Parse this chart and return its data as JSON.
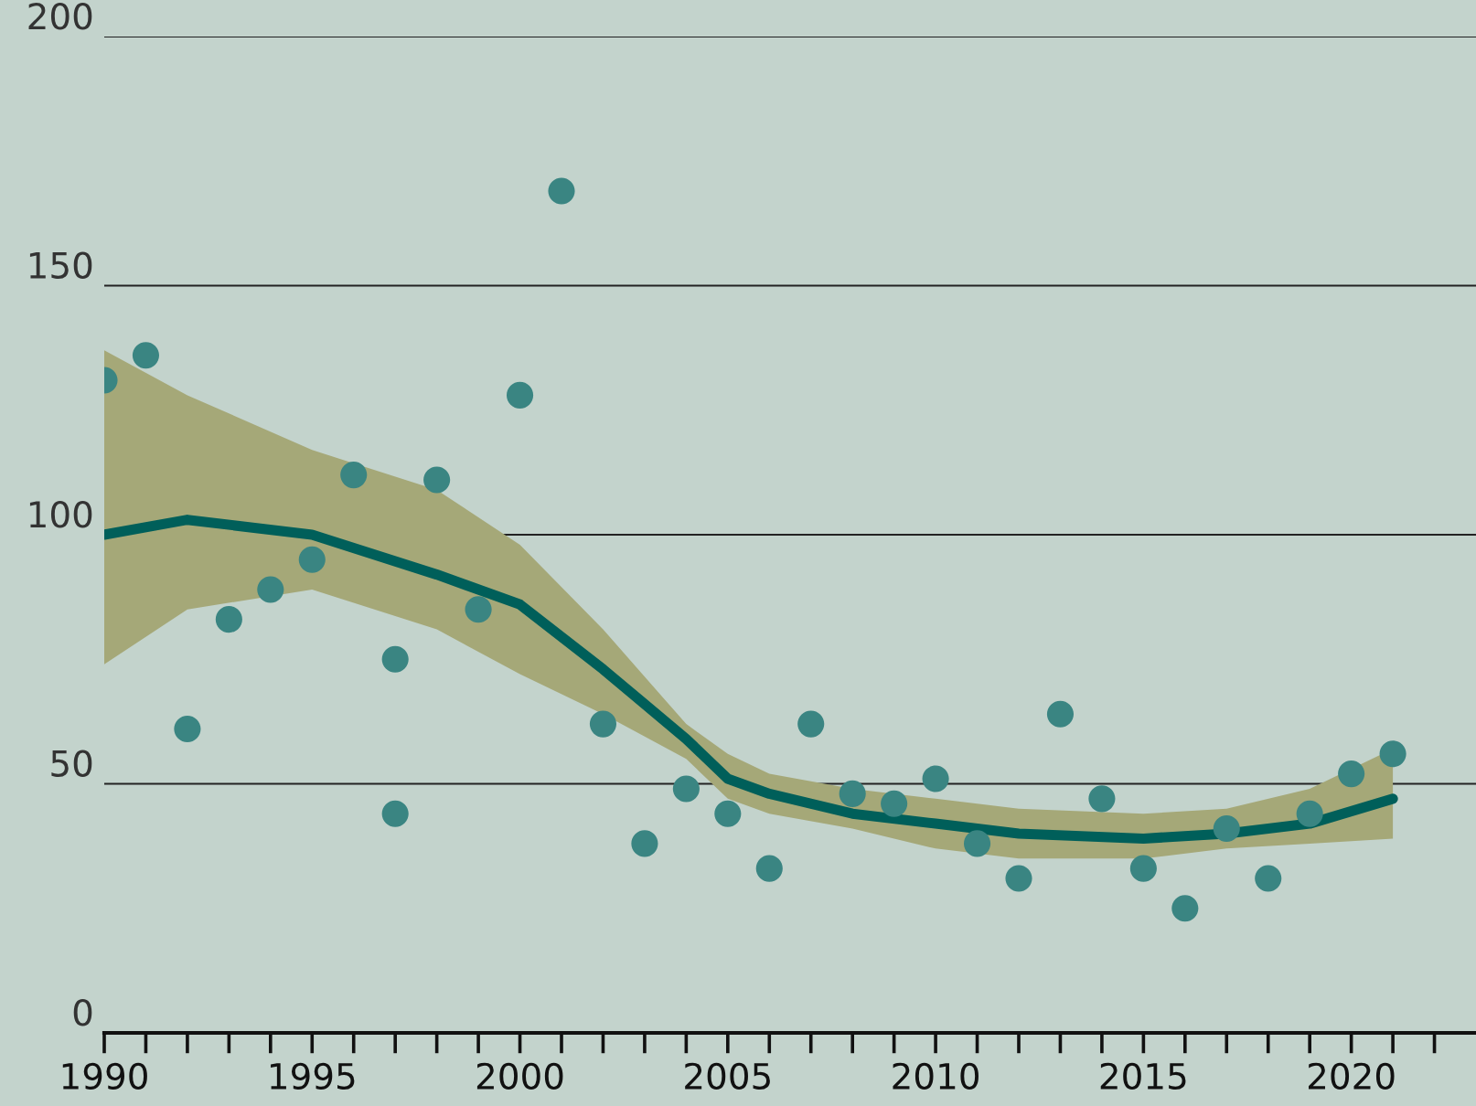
{
  "chart_data": {
    "type": "scatter",
    "series": [
      {
        "color": "#3a8582",
        "marker": "circle",
        "x": [
          1990,
          1991,
          1992,
          1993,
          1994,
          1995,
          1996,
          1997,
          1997,
          1998,
          1999,
          2000,
          2001,
          2002,
          2003,
          2004,
          2005,
          2006,
          2007,
          2008,
          2009,
          2010,
          2011,
          2012,
          2013,
          2014,
          2015,
          2016,
          2017,
          2018,
          2019,
          2020,
          2021
        ],
        "values": [
          131,
          136,
          61,
          83,
          89,
          95,
          112,
          75,
          44,
          111,
          85,
          128,
          169,
          62,
          38,
          49,
          44,
          33,
          62,
          48,
          46,
          51,
          38,
          31,
          64,
          47,
          33,
          25,
          41,
          31,
          44,
          52,
          56
        ]
      },
      {
        "type": "line",
        "marker": "none",
        "color": "#005f5a",
        "x": [
          1990,
          1992,
          1995,
          1998,
          2000,
          2002,
          2004,
          2005,
          2006,
          2008,
          2010,
          2012,
          2015,
          2017,
          2019,
          2021
        ],
        "values": [
          100,
          103,
          100,
          92,
          86,
          73,
          59,
          51,
          48,
          44,
          42,
          40,
          39,
          40,
          42,
          47
        ],
        "lower": [
          74,
          85,
          89,
          81,
          72,
          64,
          55,
          47,
          44,
          41,
          37,
          35,
          35,
          37,
          38,
          39
        ],
        "upper": [
          137,
          128,
          117,
          109,
          98,
          81,
          62,
          56,
          52,
          49,
          47,
          45,
          44,
          45,
          49,
          57
        ]
      }
    ],
    "xlim": [
      1990,
      2023
    ],
    "xticks": [
      1990,
      {
        "value": 1991,
        "label": null
      },
      {
        "value": 1992,
        "label": null
      },
      {
        "value": 1993,
        "label": null
      },
      {
        "value": 1994,
        "label": null
      },
      1995,
      {
        "value": 1996,
        "label": null
      },
      {
        "value": 1997,
        "label": null
      },
      {
        "value": 1998,
        "label": null
      },
      {
        "value": 1999,
        "label": null
      },
      2000,
      {
        "value": 2001,
        "label": null
      },
      {
        "value": 2002,
        "label": null
      },
      {
        "value": 2003,
        "label": null
      },
      {
        "value": 2004,
        "label": null
      },
      2005,
      {
        "value": 2006,
        "label": null
      },
      {
        "value": 2007,
        "label": null
      },
      {
        "value": 2008,
        "label": null
      },
      {
        "value": 2009,
        "label": null
      },
      2010,
      {
        "value": 2011,
        "label": null
      },
      {
        "value": 2012,
        "label": null
      },
      {
        "value": 2013,
        "label": null
      },
      {
        "value": 2014,
        "label": null
      },
      2015,
      {
        "value": 2016,
        "label": null
      },
      {
        "value": 2017,
        "label": null
      },
      {
        "value": 2018,
        "label": null
      },
      {
        "value": 2019,
        "label": null
      },
      2020,
      {
        "value": 2021,
        "label": null
      },
      {
        "value": 2022,
        "label": null
      }
    ],
    "ylim": [
      0,
      200
    ],
    "yticks": [
      0,
      50,
      100,
      150,
      200
    ],
    "grid": "y",
    "line_style": "solid",
    "legend": false
  }
}
